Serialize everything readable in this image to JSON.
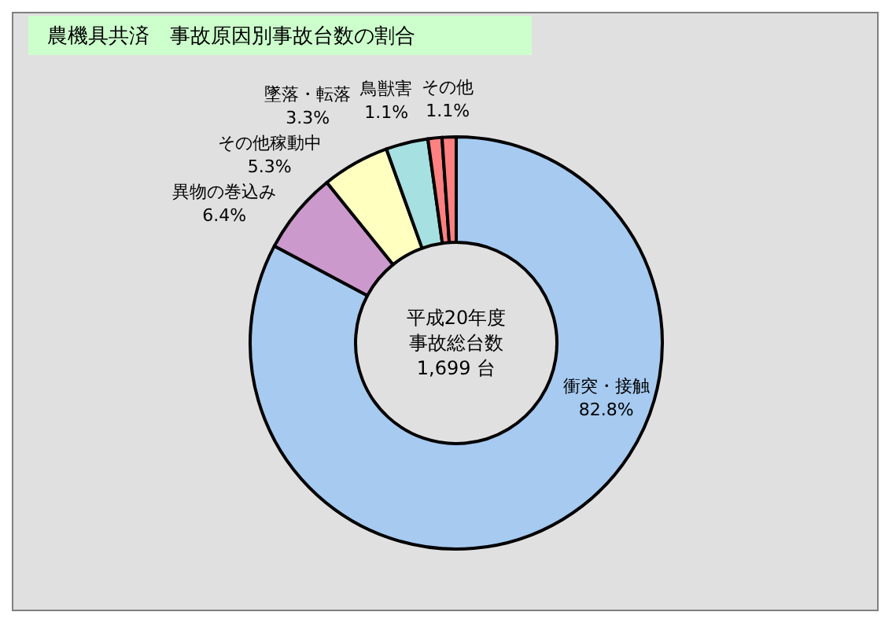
{
  "chart_data": {
    "type": "donut",
    "title": "農機具共済　事故原因別事故台数の割合",
    "categories": [
      "衝突・接触",
      "異物の巻込み",
      "その他稼動中",
      "墜落・転落",
      "鳥獣害",
      "その他"
    ],
    "values": [
      82.8,
      6.4,
      5.3,
      3.3,
      1.1,
      1.1
    ],
    "value_labels": [
      "82.8%",
      "6.4%",
      "5.3%",
      "3.3%",
      "1.1%",
      "1.1%"
    ],
    "colors": [
      "#a6caf0",
      "#cc99cc",
      "#ffffc0",
      "#a6e0e0",
      "#ff8080",
      "#ff8080"
    ],
    "annotations": [
      "平成20年度",
      "事故総台数",
      "1,699 台"
    ]
  }
}
